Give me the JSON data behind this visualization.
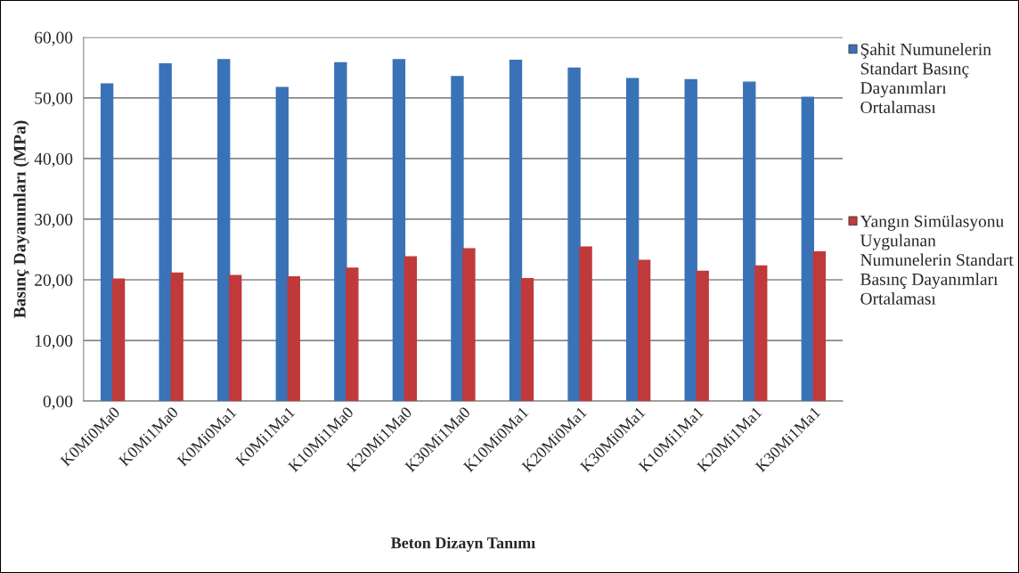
{
  "chart_data": {
    "type": "bar",
    "xlabel": "Beton Dizayn Tanımı",
    "ylabel": "Basınç Dayanımları (MPa)",
    "categories": [
      "K0Mi0Ma0",
      "K0Mi1Ma0",
      "K0Mi0Ma1",
      "K0Mi1Ma1",
      "K10Mi1Ma0",
      "K20Mi1Ma0",
      "K30Mi1Ma0",
      "K10Mi0Ma1",
      "K20Mi0Ma1",
      "K30Mi0Ma1",
      "K10Mi1Ma1",
      "K20Mi1Ma1",
      "K30Mi1Ma1"
    ],
    "series": [
      {
        "name": "Şahit Numunelerin Standart Basınç Dayanımları Ortalaması",
        "color": "#3a72b8",
        "values": [
          52.3,
          55.6,
          56.3,
          51.7,
          55.8,
          56.3,
          53.5,
          56.2,
          54.9,
          53.2,
          53.0,
          52.6,
          50.1
        ]
      },
      {
        "name": "Yangın Simülasyonu Uygulanan Numunelerin Standart Basınç Dayanımları Ortalaması",
        "color": "#c0393b",
        "values": [
          20.1,
          21.1,
          20.7,
          20.5,
          21.9,
          23.8,
          25.1,
          20.2,
          25.4,
          23.2,
          21.4,
          22.3,
          24.6
        ]
      }
    ],
    "ylim": [
      0,
      60
    ],
    "yticks": [
      {
        "value": 0,
        "label": "0,00"
      },
      {
        "value": 10,
        "label": "10,00"
      },
      {
        "value": 20,
        "label": "20,00"
      },
      {
        "value": 30,
        "label": "30,00"
      },
      {
        "value": 40,
        "label": "40,00"
      },
      {
        "value": 50,
        "label": "50,00"
      },
      {
        "value": 60,
        "label": "60,00"
      }
    ],
    "grid": "y",
    "legend": "right"
  }
}
